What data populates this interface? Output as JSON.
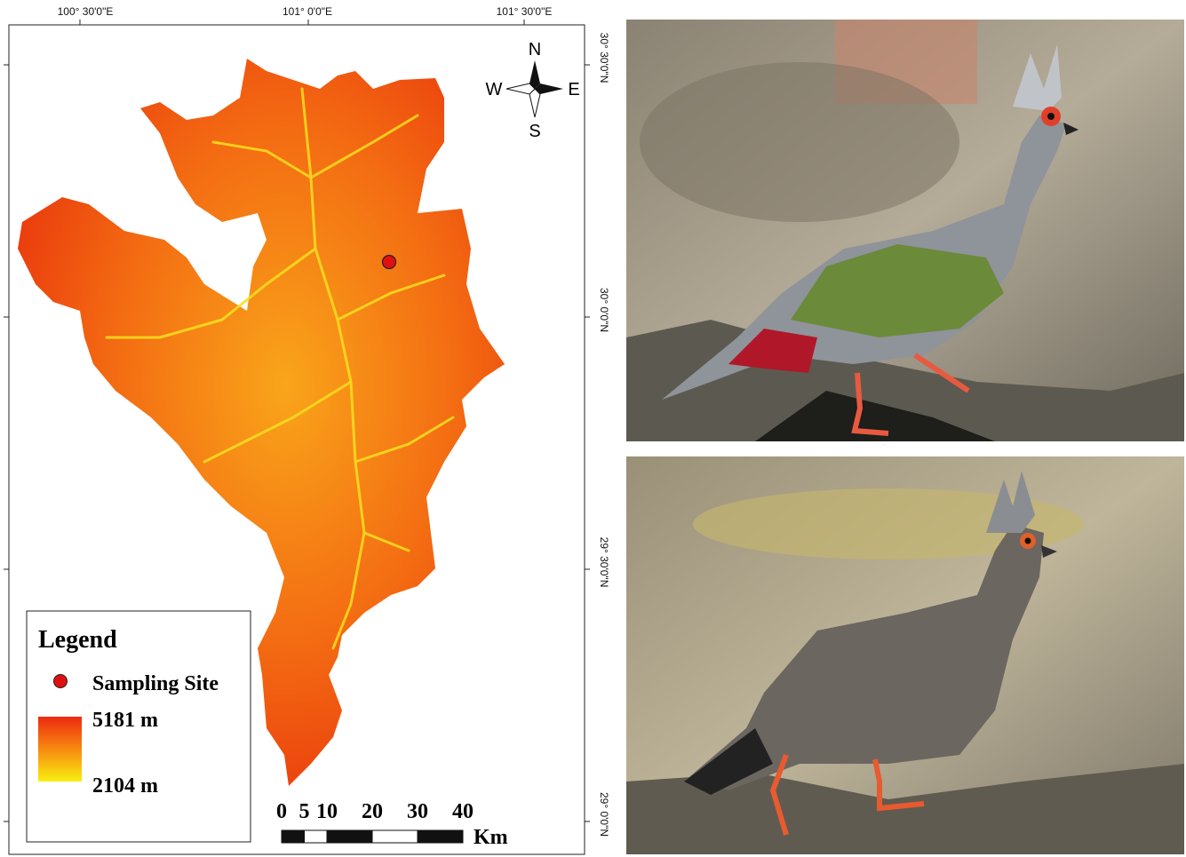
{
  "map": {
    "lon_labels": [
      "100° 30'0\"E",
      "101° 0'0\"E",
      "101° 30'0\"E"
    ],
    "lat_labels": [
      "30° 30'0\"N",
      "30° 0'0\"N",
      "29° 30'0\"N",
      "29° 0'0\"N"
    ],
    "compass": {
      "n": "N",
      "s": "S",
      "w": "W",
      "e": "E"
    },
    "legend": {
      "title": "Legend",
      "site": "Sampling Site",
      "max": "5181 m",
      "min": "2104 m"
    },
    "scale_bar": {
      "ticks": [
        0,
        5,
        10,
        20,
        30,
        40
      ],
      "unit": "Km"
    }
  }
}
